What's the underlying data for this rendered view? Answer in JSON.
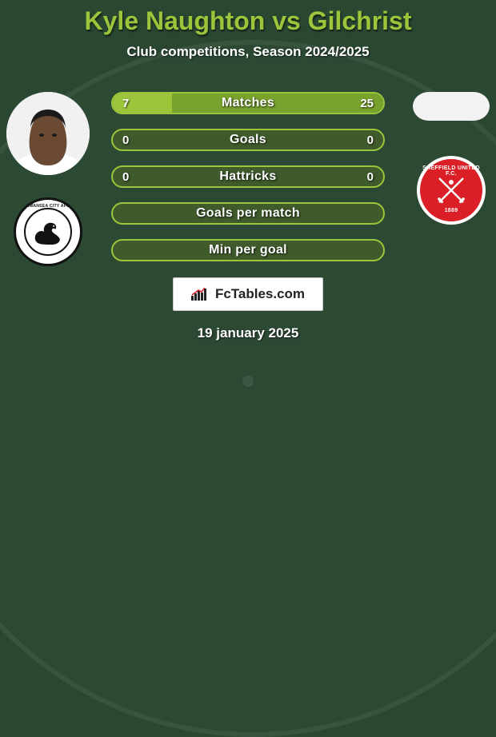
{
  "header": {
    "title": "Kyle Naughton vs Gilchrist",
    "title_color": "#9cc53c",
    "title_fontsize": 32,
    "subtitle": "Club competitions, Season 2024/2025",
    "subtitle_color": "#ffffff",
    "subtitle_fontsize": 17
  },
  "background": {
    "color": "#294731"
  },
  "players": {
    "left": {
      "name": "Kyle Naughton",
      "club_text_top": "SWANSEA CITY AFC"
    },
    "right": {
      "name": "Gilchrist",
      "club_text_top": "SHEFFIELD UNITED F.C.",
      "club_year": "1889"
    }
  },
  "bars": {
    "track_color": "#3f5b2b",
    "fill_left_color": "#9cc53c",
    "fill_right_color": "#78a12d",
    "label_color": "#ffffff",
    "value_color": "#ffffff",
    "label_fontsize": 16,
    "value_fontsize": 15,
    "items": [
      {
        "label": "Matches",
        "left": "7",
        "right": "25",
        "left_pct": 22,
        "right_pct": 78
      },
      {
        "label": "Goals",
        "left": "0",
        "right": "0",
        "left_pct": 0,
        "right_pct": 0
      },
      {
        "label": "Hattricks",
        "left": "0",
        "right": "0",
        "left_pct": 0,
        "right_pct": 0
      },
      {
        "label": "Goals per match",
        "left": "",
        "right": "",
        "left_pct": 0,
        "right_pct": 0
      },
      {
        "label": "Min per goal",
        "left": "",
        "right": "",
        "left_pct": 0,
        "right_pct": 0
      }
    ]
  },
  "attribution": {
    "text": "FcTables.com",
    "fontsize": 17
  },
  "date": {
    "text": "19 january 2025",
    "color": "#ffffff",
    "fontsize": 17
  }
}
